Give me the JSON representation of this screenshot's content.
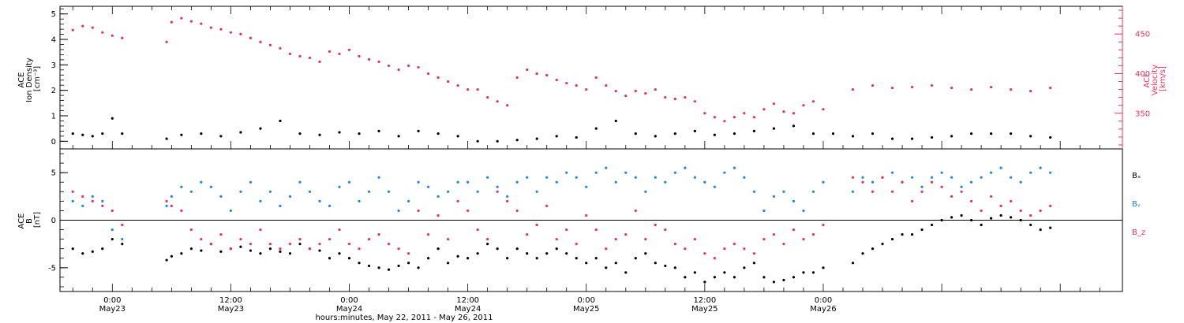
{
  "chart_data": [
    {
      "type": "scatter",
      "panel": "top",
      "ylabel_left": [
        "ACE",
        "Ion Density",
        "[cm⁻³]"
      ],
      "ylabel_right": [
        "ACE",
        "Velocity",
        "[km/s]"
      ],
      "ylim_left": [
        -0.3,
        5.3
      ],
      "yticks_left": [
        0,
        1,
        2,
        3,
        4,
        5
      ],
      "ylim_right": [
        305,
        485
      ],
      "yticks_right": [
        350,
        400,
        450
      ],
      "grid": false,
      "colors": {
        "density": "#000000",
        "velocity": "#e8315a"
      },
      "series": [
        {
          "key": "density",
          "axis": "left",
          "x": [
            -4.0,
            -3.0,
            -2.0,
            -1.0,
            0.0,
            1.0,
            5.5,
            7.0,
            9.0,
            11.0,
            13.0,
            15.0,
            17.0,
            19.0,
            21.0,
            23.0,
            25.0,
            27.0,
            29.0,
            31.0,
            33.0,
            35.0,
            37.0,
            39.0,
            41.0,
            43.0,
            45.0,
            47.0,
            49.0,
            51.0,
            53.0,
            55.0,
            57.0,
            59.0,
            61.0,
            63.0,
            65.0,
            67.0,
            69.0,
            71.0,
            73.0,
            75.0,
            77.0,
            79.0,
            81.0,
            83.0,
            85.0,
            87.0,
            89.0,
            91.0,
            93.0,
            95.0
          ],
          "y": [
            0.3,
            0.25,
            0.2,
            0.3,
            0.9,
            0.3,
            0.1,
            0.25,
            0.3,
            0.2,
            0.35,
            0.5,
            0.8,
            0.3,
            0.25,
            0.35,
            0.3,
            0.4,
            0.2,
            0.4,
            0.3,
            0.2,
            0.0,
            0.0,
            0.05,
            0.1,
            0.2,
            0.15,
            0.5,
            0.8,
            0.3,
            0.2,
            0.3,
            0.4,
            0.25,
            0.3,
            0.4,
            0.5,
            0.6,
            0.3,
            0.3,
            0.2,
            0.3,
            0.1,
            0.1,
            0.15,
            0.2,
            0.3,
            0.3,
            0.3,
            0.2,
            0.15
          ]
        },
        {
          "key": "velocity",
          "axis": "right",
          "x": [
            -4.0,
            -3.0,
            -2.0,
            -1.0,
            0.0,
            1.0,
            5.5,
            6.0,
            7.0,
            8.0,
            9.0,
            10.0,
            11.0,
            12.0,
            13.0,
            14.0,
            15.0,
            16.0,
            17.0,
            18.0,
            19.0,
            20.0,
            21.0,
            22.0,
            23.0,
            24.0,
            25.0,
            26.0,
            27.0,
            28.0,
            29.0,
            30.0,
            31.0,
            32.0,
            33.0,
            34.0,
            35.0,
            36.0,
            37.0,
            38.0,
            39.0,
            40.0,
            41.0,
            42.0,
            43.0,
            44.0,
            45.0,
            46.0,
            47.0,
            48.0,
            49.0,
            50.0,
            51.0,
            52.0,
            53.0,
            54.0,
            55.0,
            56.0,
            57.0,
            58.0,
            59.0,
            60.0,
            61.0,
            62.0,
            63.0,
            64.0,
            65.0,
            66.0,
            67.0,
            68.0,
            69.0,
            70.0,
            71.0,
            72.0,
            75.0,
            77.0,
            79.0,
            81.0,
            83.0,
            85.0,
            87.0,
            89.0,
            91.0,
            93.0,
            95.0
          ],
          "y": [
            455,
            460,
            458,
            452,
            448,
            445,
            440,
            465,
            470,
            466,
            463,
            458,
            456,
            452,
            450,
            445,
            440,
            436,
            432,
            425,
            422,
            420,
            415,
            428,
            425,
            430,
            422,
            418,
            415,
            410,
            405,
            410,
            408,
            400,
            395,
            390,
            385,
            380,
            380,
            370,
            365,
            360,
            395,
            405,
            400,
            398,
            392,
            388,
            385,
            380,
            395,
            385,
            378,
            372,
            378,
            375,
            380,
            370,
            368,
            370,
            365,
            350,
            345,
            340,
            345,
            350,
            345,
            355,
            362,
            352,
            350,
            360,
            365,
            355,
            380,
            385,
            382,
            383,
            385,
            382,
            380,
            383,
            380,
            378,
            382
          ]
        }
      ]
    },
    {
      "type": "scatter",
      "panel": "bottom",
      "ylabel": [
        "ACE",
        "B",
        "[nT]"
      ],
      "ylim": [
        -7.5,
        7.5
      ],
      "yticks": [
        -5,
        0,
        5
      ],
      "zero_line": true,
      "grid": false,
      "legend": {
        "placement": "right",
        "labels": [
          "Bₓ",
          "Bᵧ",
          "B_z"
        ]
      },
      "colors": {
        "bx": "#000000",
        "by": "#1f86e0",
        "bz": "#e8315a"
      },
      "series": [
        {
          "key": "bx",
          "x": [
            -4.0,
            -3.0,
            -2.0,
            -1.0,
            0.0,
            1.0,
            5.5,
            6.0,
            7.0,
            8.0,
            9.0,
            10.0,
            11.0,
            12.0,
            13.0,
            14.0,
            15.0,
            16.0,
            17.0,
            18.0,
            19.0,
            20.0,
            21.0,
            22.0,
            23.0,
            24.0,
            25.0,
            26.0,
            27.0,
            28.0,
            29.0,
            30.0,
            31.0,
            32.0,
            33.0,
            34.0,
            35.0,
            36.0,
            37.0,
            38.0,
            39.0,
            40.0,
            41.0,
            42.0,
            43.0,
            44.0,
            45.0,
            46.0,
            47.0,
            48.0,
            49.0,
            50.0,
            51.0,
            52.0,
            53.0,
            54.0,
            55.0,
            56.0,
            57.0,
            58.0,
            59.0,
            60.0,
            61.0,
            62.0,
            63.0,
            64.0,
            65.0,
            66.0,
            67.0,
            68.0,
            69.0,
            70.0,
            71.0,
            72.0,
            75.0,
            76.0,
            77.0,
            78.0,
            79.0,
            80.0,
            81.0,
            82.0,
            83.0,
            84.0,
            85.0,
            86.0,
            87.0,
            88.0,
            89.0,
            90.0,
            91.0,
            92.0,
            93.0,
            94.0,
            95.0
          ],
          "y": [
            -3.0,
            -3.5,
            -3.3,
            -3.0,
            -2.0,
            -2.5,
            -4.2,
            -3.8,
            -3.5,
            -3.0,
            -3.2,
            -2.5,
            -3.3,
            -3.0,
            -2.8,
            -3.2,
            -3.5,
            -3.0,
            -3.3,
            -3.5,
            -2.5,
            -3.0,
            -3.2,
            -4.0,
            -3.5,
            -4.0,
            -4.5,
            -4.8,
            -5.0,
            -5.2,
            -4.8,
            -4.5,
            -5.0,
            -4.0,
            -3.0,
            -4.5,
            -3.8,
            -4.0,
            -3.5,
            -2.5,
            -3.0,
            -4.0,
            -3.0,
            -3.5,
            -4.0,
            -3.5,
            -3.0,
            -3.5,
            -4.0,
            -4.5,
            -4.0,
            -5.0,
            -4.5,
            -5.5,
            -4.0,
            -3.5,
            -4.5,
            -4.8,
            -5.0,
            -6.0,
            -5.5,
            -6.5,
            -6.0,
            -5.5,
            -6.0,
            -5.0,
            -4.5,
            -6.0,
            -6.5,
            -6.3,
            -6.0,
            -5.5,
            -5.5,
            -5.0,
            -4.5,
            -3.5,
            -3.0,
            -2.5,
            -2.0,
            -1.5,
            -1.5,
            -1.0,
            -0.5,
            0.0,
            0.3,
            0.5,
            0.0,
            -0.5,
            0.2,
            0.5,
            0.3,
            0.0,
            -0.5,
            -1.0,
            -0.8
          ]
        },
        {
          "key": "by",
          "x": [
            -4.0,
            -3.0,
            -2.0,
            -1.0,
            0.0,
            1.0,
            5.5,
            6.0,
            7.0,
            8.0,
            9.0,
            10.0,
            11.0,
            12.0,
            13.0,
            14.0,
            15.0,
            16.0,
            17.0,
            18.0,
            19.0,
            20.0,
            21.0,
            22.0,
            23.0,
            24.0,
            25.0,
            26.0,
            27.0,
            28.0,
            29.0,
            30.0,
            31.0,
            32.0,
            33.0,
            34.0,
            35.0,
            36.0,
            37.0,
            38.0,
            39.0,
            40.0,
            41.0,
            42.0,
            43.0,
            44.0,
            45.0,
            46.0,
            47.0,
            48.0,
            49.0,
            50.0,
            51.0,
            52.0,
            53.0,
            54.0,
            55.0,
            56.0,
            57.0,
            58.0,
            59.0,
            60.0,
            61.0,
            62.0,
            63.0,
            64.0,
            65.0,
            66.0,
            67.0,
            68.0,
            69.0,
            70.0,
            71.0,
            72.0,
            75.0,
            76.0,
            77.0,
            78.0,
            79.0,
            80.0,
            81.0,
            82.0,
            83.0,
            84.0,
            85.0,
            86.0,
            87.0,
            88.0,
            89.0,
            90.0,
            91.0,
            92.0,
            93.0,
            94.0,
            95.0
          ],
          "y": [
            2.0,
            1.5,
            2.5,
            2.0,
            -1.0,
            -2.0,
            1.5,
            2.5,
            3.5,
            3.0,
            4.0,
            3.5,
            2.5,
            1.0,
            3.0,
            4.0,
            2.0,
            3.0,
            1.5,
            2.5,
            4.0,
            3.0,
            2.0,
            1.5,
            3.5,
            4.0,
            2.0,
            3.0,
            4.5,
            3.0,
            1.0,
            2.0,
            4.0,
            3.5,
            2.5,
            3.0,
            4.0,
            4.0,
            3.0,
            4.5,
            3.5,
            2.5,
            4.0,
            4.5,
            3.0,
            4.5,
            4.0,
            5.0,
            4.5,
            3.5,
            5.0,
            5.5,
            4.0,
            5.0,
            4.5,
            3.0,
            4.5,
            4.0,
            5.0,
            5.5,
            4.5,
            4.0,
            3.5,
            5.0,
            5.5,
            4.5,
            3.0,
            1.0,
            2.5,
            3.0,
            2.0,
            1.0,
            3.0,
            4.0,
            3.0,
            4.5,
            4.0,
            4.5,
            5.0,
            4.0,
            4.5,
            3.5,
            4.5,
            5.0,
            4.5,
            3.5,
            4.0,
            4.5,
            5.0,
            5.5,
            4.5,
            4.0,
            5.0,
            5.5,
            5.0
          ]
        },
        {
          "key": "bz",
          "x": [
            -4.0,
            -3.0,
            -2.0,
            -1.0,
            0.0,
            1.0,
            5.5,
            6.0,
            7.0,
            8.0,
            9.0,
            10.0,
            11.0,
            12.0,
            13.0,
            14.0,
            15.0,
            16.0,
            17.0,
            18.0,
            19.0,
            20.0,
            21.0,
            22.0,
            23.0,
            24.0,
            25.0,
            26.0,
            27.0,
            28.0,
            29.0,
            30.0,
            31.0,
            32.0,
            33.0,
            34.0,
            35.0,
            36.0,
            37.0,
            38.0,
            39.0,
            40.0,
            41.0,
            42.0,
            43.0,
            44.0,
            45.0,
            46.0,
            47.0,
            48.0,
            49.0,
            50.0,
            51.0,
            52.0,
            53.0,
            54.0,
            55.0,
            56.0,
            57.0,
            58.0,
            59.0,
            60.0,
            61.0,
            62.0,
            63.0,
            64.0,
            65.0,
            66.0,
            67.0,
            68.0,
            69.0,
            70.0,
            71.0,
            72.0,
            75.0,
            76.0,
            77.0,
            78.0,
            79.0,
            80.0,
            81.0,
            82.0,
            83.0,
            84.0,
            85.0,
            86.0,
            87.0,
            88.0,
            89.0,
            90.0,
            91.0,
            92.0,
            93.0,
            94.0,
            95.0
          ],
          "y": [
            3.0,
            2.5,
            2.0,
            1.5,
            1.0,
            -0.5,
            2.0,
            1.5,
            1.0,
            -1.0,
            -2.0,
            -2.5,
            -1.5,
            -3.0,
            -2.0,
            -2.5,
            -1.0,
            -2.5,
            -3.0,
            -2.5,
            -2.0,
            -3.0,
            -2.5,
            -2.0,
            -1.0,
            -2.5,
            -3.0,
            -2.0,
            -1.5,
            -2.5,
            -3.0,
            -3.5,
            1.0,
            -1.5,
            0.5,
            -2.0,
            2.0,
            1.0,
            -1.0,
            -2.0,
            3.0,
            2.0,
            1.0,
            -1.5,
            -0.5,
            1.5,
            -2.0,
            -1.0,
            -2.5,
            0.5,
            -1.0,
            -3.0,
            -2.0,
            -1.5,
            1.0,
            -2.0,
            -0.5,
            -1.0,
            -2.5,
            -3.0,
            -2.0,
            -3.5,
            -4.0,
            -3.0,
            -2.5,
            -3.0,
            -3.5,
            -2.0,
            -1.5,
            -2.5,
            -1.0,
            -2.0,
            -1.5,
            -0.5,
            4.5,
            4.0,
            3.0,
            4.5,
            3.0,
            4.0,
            2.0,
            3.0,
            4.0,
            3.5,
            2.5,
            3.0,
            2.0,
            1.0,
            2.5,
            1.5,
            2.0,
            1.0,
            0.5,
            1.0,
            1.5
          ]
        }
      ]
    },
    {
      "type": "time-axis",
      "xlim": [
        -5.3,
        102.3
      ],
      "ticks": [
        {
          "x": 0,
          "time": "0:00",
          "date": "May23"
        },
        {
          "x": 12,
          "time": "12:00",
          "date": "May23"
        },
        {
          "x": 24,
          "time": "0:00",
          "date": "May24"
        },
        {
          "x": 36,
          "time": "12:00",
          "date": "May24"
        },
        {
          "x": 48,
          "time": "0:00",
          "date": "May25"
        },
        {
          "x": 60,
          "time": "12:00",
          "date": "May25"
        },
        {
          "x": 72,
          "time": "0:00",
          "date": "May26"
        }
      ],
      "xlabel": "hours:minutes, May 22, 2011 - May 26, 2011"
    }
  ]
}
